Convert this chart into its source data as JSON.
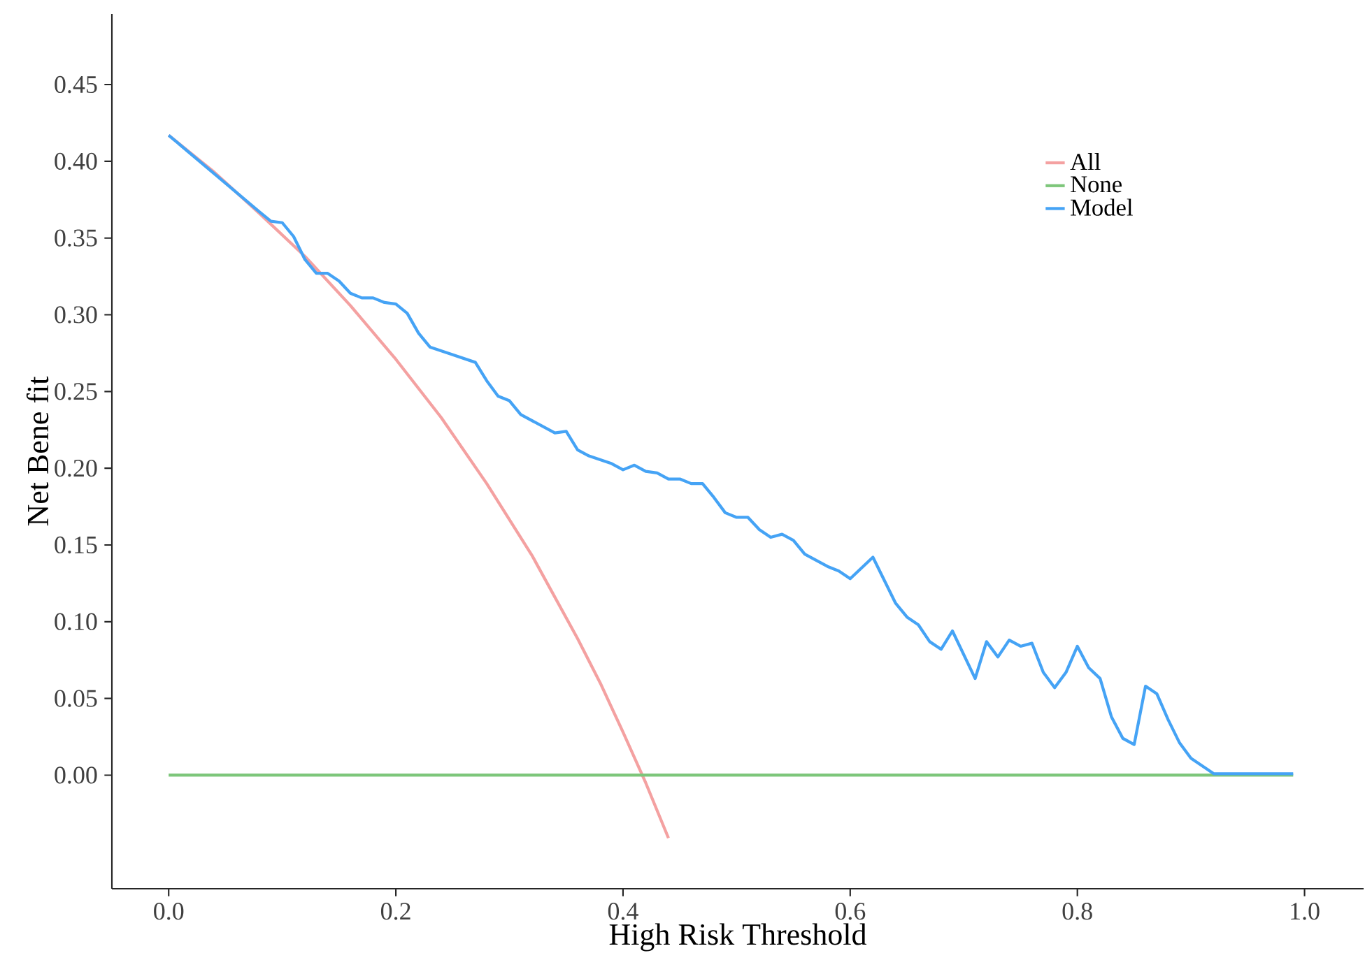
{
  "chart_data": {
    "type": "line",
    "xlabel": "High Risk Threshold",
    "ylabel": "Net Bene fit",
    "xlim": [
      -0.05,
      1.052
    ],
    "ylim": [
      -0.074,
      0.496
    ],
    "xticks": [
      {
        "value": 0,
        "label": "0.0"
      },
      {
        "value": 0.2,
        "label": "0.2"
      },
      {
        "value": 0.4,
        "label": "0.4"
      },
      {
        "value": 0.6,
        "label": "0.6"
      },
      {
        "value": 0.8,
        "label": "0.8"
      },
      {
        "value": 1,
        "label": "1.0"
      }
    ],
    "yticks": [
      {
        "value": 0,
        "label": "0.00"
      },
      {
        "value": 0.05,
        "label": "0.05"
      },
      {
        "value": 0.1,
        "label": "0.10"
      },
      {
        "value": 0.15,
        "label": "0.15"
      },
      {
        "value": 0.2,
        "label": "0.20"
      },
      {
        "value": 0.25,
        "label": "0.25"
      },
      {
        "value": 0.3,
        "label": "0.30"
      },
      {
        "value": 0.35,
        "label": "0.35"
      },
      {
        "value": 0.4,
        "label": "0.40"
      },
      {
        "value": 0.45,
        "label": "0.45"
      }
    ],
    "grid": false,
    "legend": "top right",
    "marker": "none",
    "line_style": "solid",
    "series": [
      {
        "name": "All",
        "color": "#f4a1a1",
        "x": [
          0,
          0.04,
          0.08,
          0.12,
          0.16,
          0.2,
          0.24,
          0.28,
          0.32,
          0.36,
          0.38,
          0.4,
          0.42,
          0.44
        ],
        "values": [
          0.417,
          0.393,
          0.366,
          0.338,
          0.306,
          0.271,
          0.233,
          0.19,
          0.143,
          0.089,
          0.06,
          0.028,
          -0.005,
          -0.041
        ]
      },
      {
        "name": "None",
        "color": "#7dc67a",
        "x": [
          0,
          0.99
        ],
        "values": [
          0,
          0
        ]
      },
      {
        "name": "Model",
        "color": "#45a3f5",
        "x": [
          0,
          0.08,
          0.09,
          0.1,
          0.11,
          0.12,
          0.13,
          0.14,
          0.15,
          0.16,
          0.17,
          0.18,
          0.19,
          0.2,
          0.21,
          0.22,
          0.23,
          0.27,
          0.28,
          0.29,
          0.3,
          0.31,
          0.34,
          0.35,
          0.36,
          0.37,
          0.39,
          0.4,
          0.41,
          0.42,
          0.43,
          0.44,
          0.45,
          0.46,
          0.47,
          0.48,
          0.49,
          0.5,
          0.51,
          0.52,
          0.53,
          0.54,
          0.55,
          0.56,
          0.58,
          0.59,
          0.6,
          0.62,
          0.64,
          0.65,
          0.66,
          0.67,
          0.68,
          0.69,
          0.71,
          0.72,
          0.73,
          0.74,
          0.75,
          0.76,
          0.77,
          0.78,
          0.79,
          0.8,
          0.81,
          0.82,
          0.83,
          0.84,
          0.85,
          0.86,
          0.87,
          0.88,
          0.89,
          0.9,
          0.91,
          0.92,
          0.99
        ],
        "values": [
          0.417,
          0.367,
          0.361,
          0.36,
          0.351,
          0.336,
          0.327,
          0.327,
          0.322,
          0.314,
          0.311,
          0.311,
          0.308,
          0.307,
          0.301,
          0.288,
          0.279,
          0.269,
          0.257,
          0.247,
          0.244,
          0.235,
          0.223,
          0.224,
          0.212,
          0.208,
          0.203,
          0.199,
          0.202,
          0.198,
          0.197,
          0.193,
          0.193,
          0.19,
          0.19,
          0.181,
          0.171,
          0.168,
          0.168,
          0.16,
          0.155,
          0.157,
          0.153,
          0.144,
          0.136,
          0.133,
          0.128,
          0.142,
          0.112,
          0.103,
          0.098,
          0.087,
          0.082,
          0.094,
          0.063,
          0.087,
          0.077,
          0.088,
          0.084,
          0.086,
          0.067,
          0.057,
          0.067,
          0.084,
          0.07,
          0.063,
          0.038,
          0.024,
          0.02,
          0.058,
          0.053,
          0.036,
          0.021,
          0.011,
          0.006,
          0.001,
          0.001
        ]
      }
    ]
  }
}
